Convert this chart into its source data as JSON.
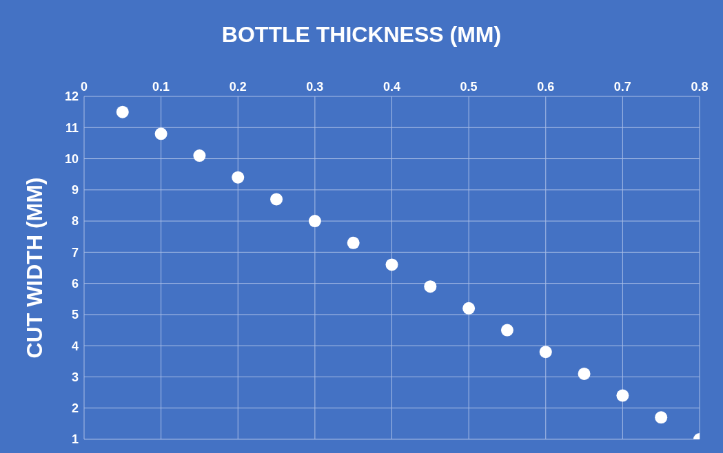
{
  "chart_data": {
    "type": "scatter",
    "xlabel": "BOTTLE THICKNESS (MM)",
    "ylabel": "CUT WIDTH (MM)",
    "x": [
      0.05,
      0.1,
      0.15,
      0.2,
      0.25,
      0.3,
      0.35,
      0.4,
      0.45,
      0.5,
      0.55,
      0.6,
      0.65,
      0.7,
      0.75,
      0.8
    ],
    "values": [
      11.5,
      10.8,
      10.1,
      9.4,
      8.7,
      8.0,
      7.3,
      6.6,
      5.9,
      5.2,
      4.5,
      3.8,
      3.1,
      2.4,
      1.7,
      1.0
    ],
    "color": "#ffffff",
    "marker": "circle",
    "grid": true,
    "xlim": [
      0,
      0.8
    ],
    "xticks": [
      0,
      0.1,
      0.2,
      0.3,
      0.4,
      0.5,
      0.6,
      0.7,
      0.8
    ],
    "ylim": [
      1,
      12
    ],
    "yticks": [
      1,
      2,
      3,
      4,
      5,
      6,
      7,
      8,
      9,
      10,
      11,
      12
    ]
  }
}
